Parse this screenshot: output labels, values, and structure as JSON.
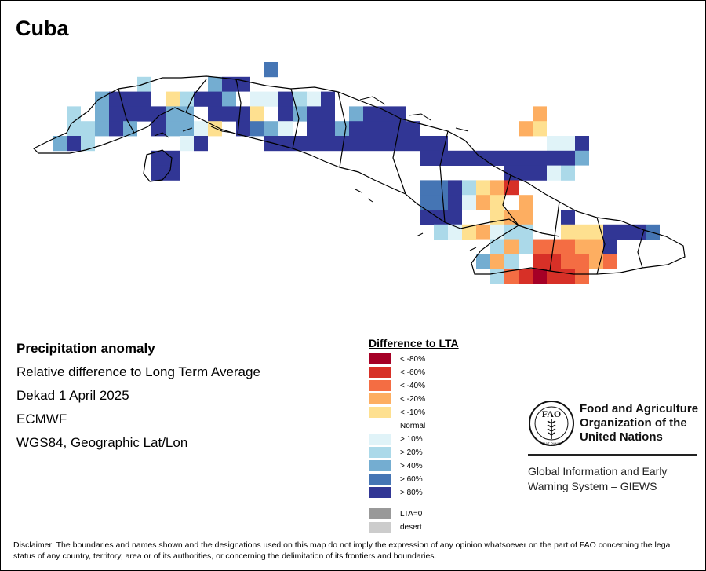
{
  "map": {
    "title": "Cuba",
    "cell_colors": {
      "lt-80": "#a50026",
      "lt-60": "#d73027",
      "lt-40": "#f46d43",
      "lt-20": "#fdae61",
      "lt-10": "#fee090",
      "normal": "#ffffff",
      "gt10": "#e0f3f8",
      "gt20": "#abd9e9",
      "gt40": "#74add1",
      "gt60": "#4575b4",
      "gt80": "#313695"
    }
  },
  "info": {
    "title": "Precipitation anomaly",
    "subtitle": "Relative difference to Long Term Average",
    "period": "Dekad 1 April 2025",
    "model": "ECMWF",
    "projection": "WGS84, Geographic Lat/Lon"
  },
  "legend": {
    "title": "Difference to LTA",
    "items": [
      {
        "label": "< -80%",
        "color": "#a50026"
      },
      {
        "label": "< -60%",
        "color": "#d73027"
      },
      {
        "label": "< -40%",
        "color": "#f46d43"
      },
      {
        "label": "< -20%",
        "color": "#fdae61"
      },
      {
        "label": "< -10%",
        "color": "#fee090"
      },
      {
        "label": "Normal",
        "color": "#ffffff"
      },
      {
        "label": "> 10%",
        "color": "#e0f3f8"
      },
      {
        "label": "> 20%",
        "color": "#abd9e9"
      },
      {
        "label": "> 40%",
        "color": "#74add1"
      },
      {
        "label": "> 60%",
        "color": "#4575b4"
      },
      {
        "label": "> 80%",
        "color": "#313695"
      }
    ],
    "extra_items": [
      {
        "label": "LTA=0",
        "color": "#999999"
      },
      {
        "label": "desert",
        "color": "#cccccc"
      }
    ]
  },
  "branding": {
    "org_line1": "Food and Agriculture",
    "org_line2": "Organization of the",
    "org_line3": "United Nations",
    "system_line1": "Global Information and Early",
    "system_line2": "Warning System – GIEWS",
    "logo_letters": "FAO",
    "logo_motto": "FIAT PANIS"
  },
  "disclaimer": "Disclaimer: The boundaries and names shown and the designations used on this map do not imply the expression of any opinion whatsoever on the part of FAO concerning the legal status of any country, territory, area or of its authorities, or concerning the delimitation of its frontiers and boundaries."
}
